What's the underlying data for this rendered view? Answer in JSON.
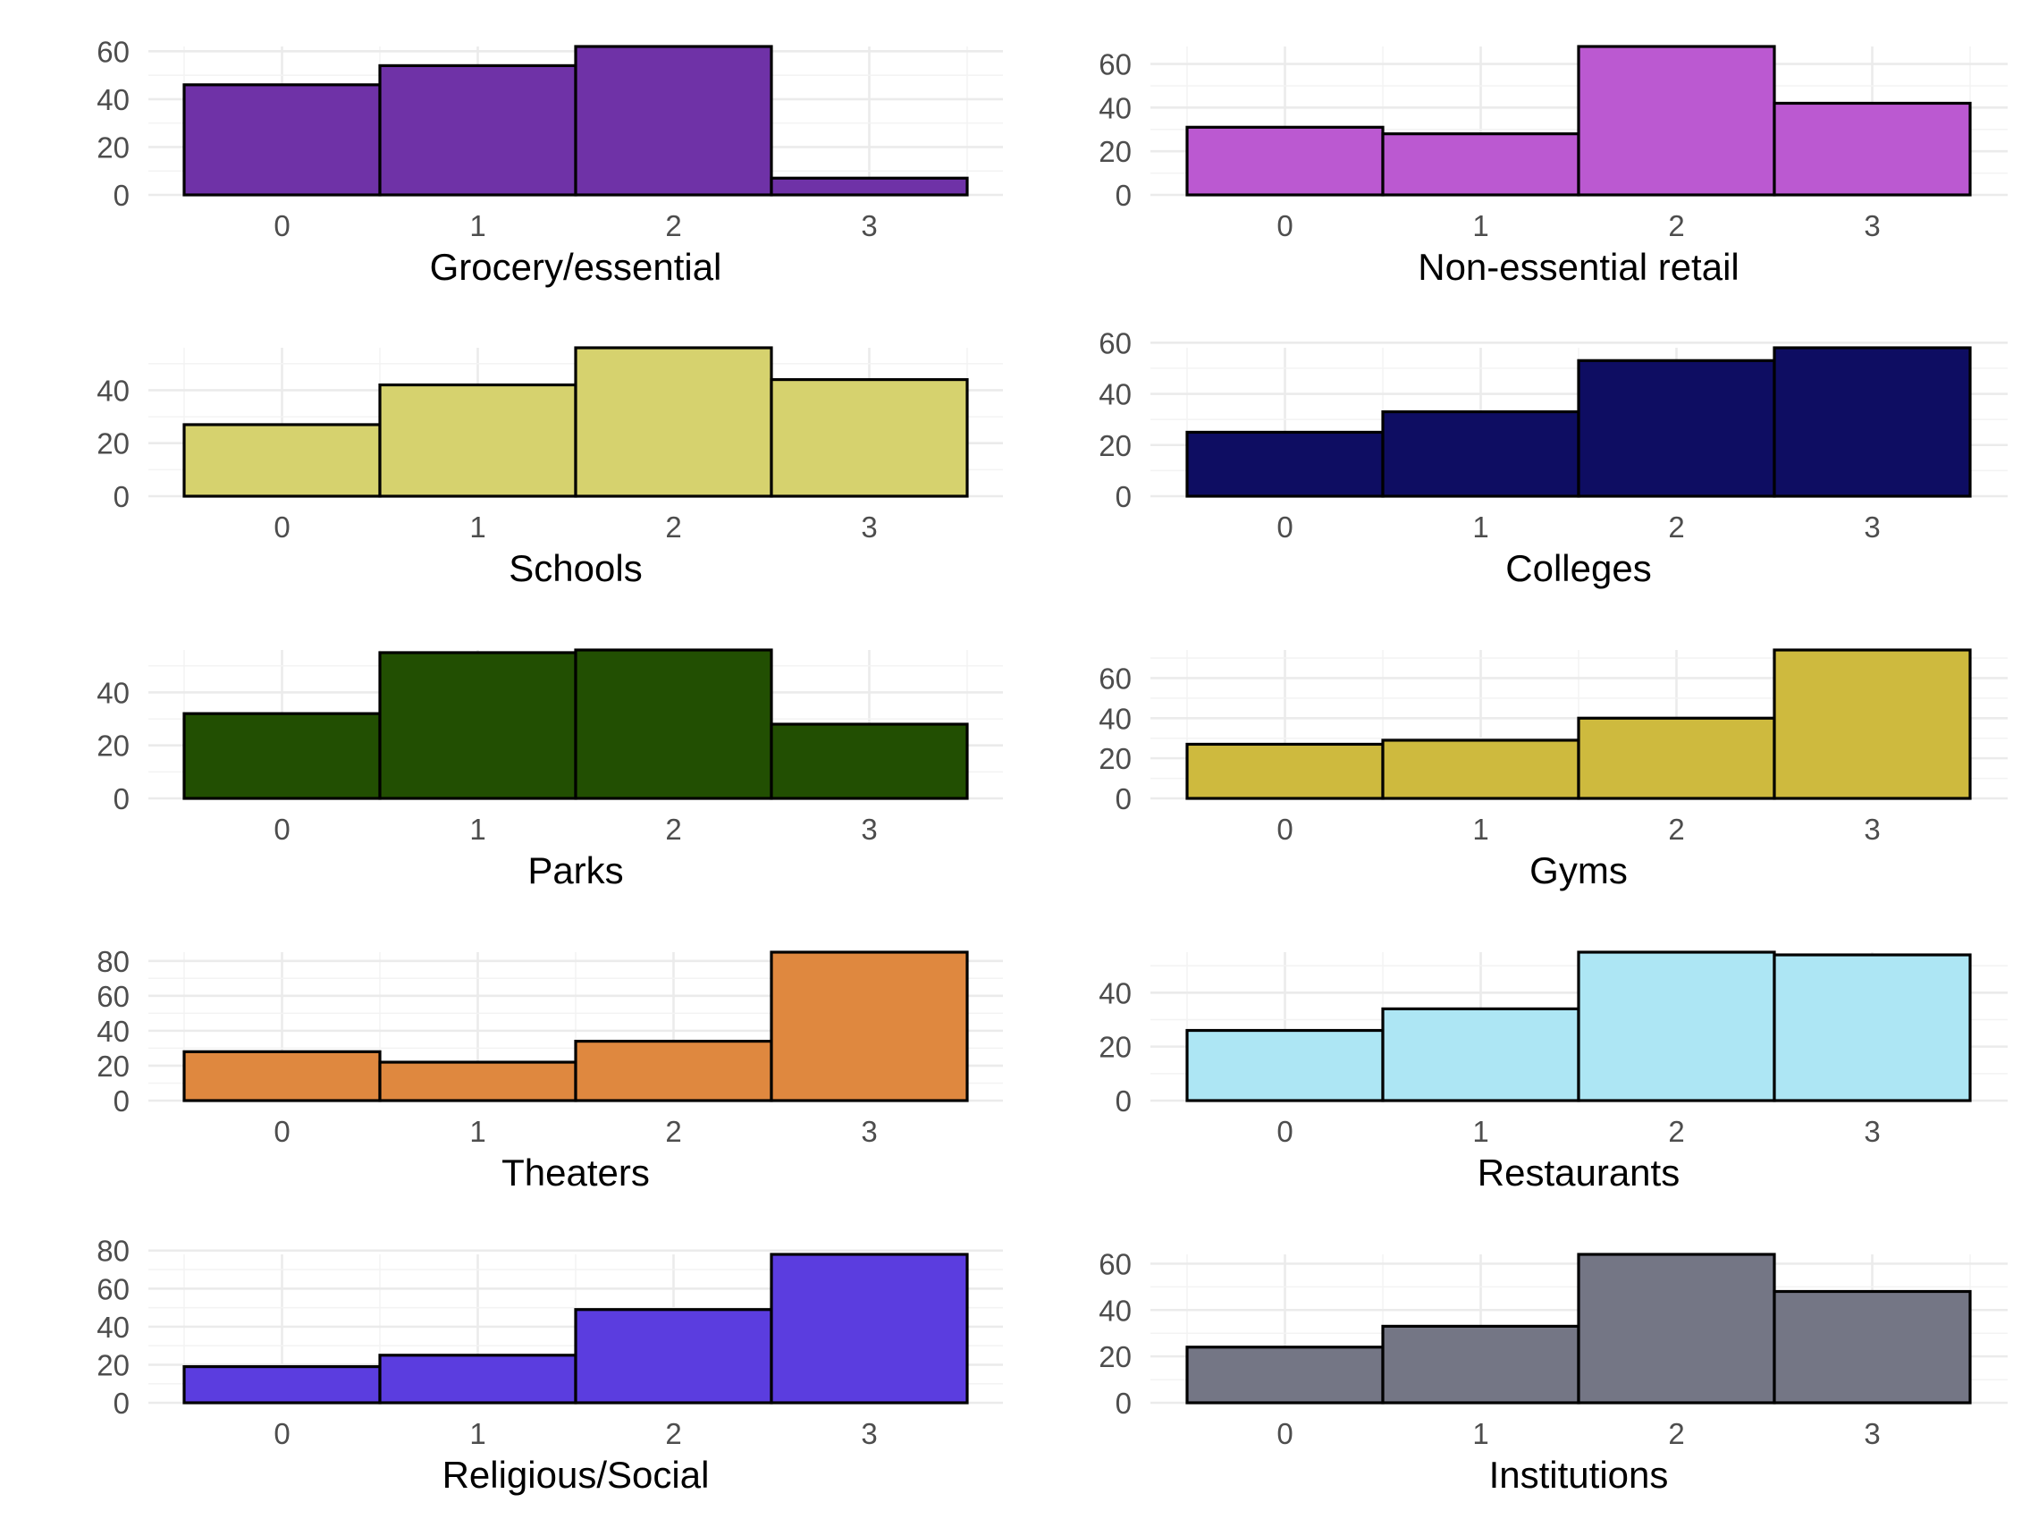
{
  "chart_data": [
    {
      "type": "bar",
      "xlabel": "Grocery/essential",
      "categories": [
        "0",
        "1",
        "2",
        "3"
      ],
      "values": [
        46,
        54,
        62,
        7
      ],
      "ylim": [
        0,
        62
      ],
      "yticks": [
        0,
        20,
        40,
        60
      ],
      "fill": "#6f32a7",
      "grid": true,
      "legend": "none"
    },
    {
      "type": "bar",
      "xlabel": "Non-essential retail",
      "categories": [
        "0",
        "1",
        "2",
        "3"
      ],
      "values": [
        31,
        28,
        68,
        42
      ],
      "ylim": [
        0,
        68
      ],
      "yticks": [
        0,
        20,
        40,
        60
      ],
      "fill": "#bb59d1",
      "grid": true,
      "legend": "none"
    },
    {
      "type": "bar",
      "xlabel": "Schools",
      "categories": [
        "0",
        "1",
        "2",
        "3"
      ],
      "values": [
        27,
        42,
        56,
        44
      ],
      "ylim": [
        0,
        56
      ],
      "yticks": [
        0,
        20,
        40
      ],
      "fill": "#d6d26e",
      "grid": true,
      "legend": "none"
    },
    {
      "type": "bar",
      "xlabel": "Colleges",
      "categories": [
        "0",
        "1",
        "2",
        "3"
      ],
      "values": [
        25,
        33,
        53,
        58
      ],
      "ylim": [
        0,
        58
      ],
      "yticks": [
        0,
        20,
        40,
        60
      ],
      "fill": "#0e0d62",
      "grid": true,
      "legend": "none"
    },
    {
      "type": "bar",
      "xlabel": "Parks",
      "categories": [
        "0",
        "1",
        "2",
        "3"
      ],
      "values": [
        32,
        55,
        56,
        28
      ],
      "ylim": [
        0,
        56
      ],
      "yticks": [
        0,
        20,
        40
      ],
      "fill": "#224f02",
      "grid": true,
      "legend": "none"
    },
    {
      "type": "bar",
      "xlabel": "Gyms",
      "categories": [
        "0",
        "1",
        "2",
        "3"
      ],
      "values": [
        27,
        29,
        40,
        74
      ],
      "ylim": [
        0,
        74
      ],
      "yticks": [
        0,
        20,
        40,
        60
      ],
      "fill": "#ceba3e",
      "grid": true,
      "legend": "none"
    },
    {
      "type": "bar",
      "xlabel": "Theaters",
      "categories": [
        "0",
        "1",
        "2",
        "3"
      ],
      "values": [
        28,
        22,
        34,
        85
      ],
      "ylim": [
        0,
        85
      ],
      "yticks": [
        0,
        20,
        40,
        60,
        80
      ],
      "fill": "#df883f",
      "grid": true,
      "legend": "none"
    },
    {
      "type": "bar",
      "xlabel": "Restaurants",
      "categories": [
        "0",
        "1",
        "2",
        "3"
      ],
      "values": [
        26,
        34,
        55,
        54
      ],
      "ylim": [
        0,
        55
      ],
      "yticks": [
        0,
        20,
        40
      ],
      "fill": "#ade6f4",
      "grid": true,
      "legend": "none"
    },
    {
      "type": "bar",
      "xlabel": "Religious/Social",
      "categories": [
        "0",
        "1",
        "2",
        "3"
      ],
      "values": [
        19,
        25,
        49,
        78
      ],
      "ylim": [
        0,
        78
      ],
      "yticks": [
        0,
        20,
        40,
        60,
        80
      ],
      "fill": "#5b3ddf",
      "grid": true,
      "legend": "none"
    },
    {
      "type": "bar",
      "xlabel": "Institutions",
      "categories": [
        "0",
        "1",
        "2",
        "3"
      ],
      "values": [
        24,
        33,
        64,
        48
      ],
      "ylim": [
        0,
        64
      ],
      "yticks": [
        0,
        20,
        40,
        60
      ],
      "fill": "#747685",
      "grid": true,
      "legend": "none"
    }
  ]
}
